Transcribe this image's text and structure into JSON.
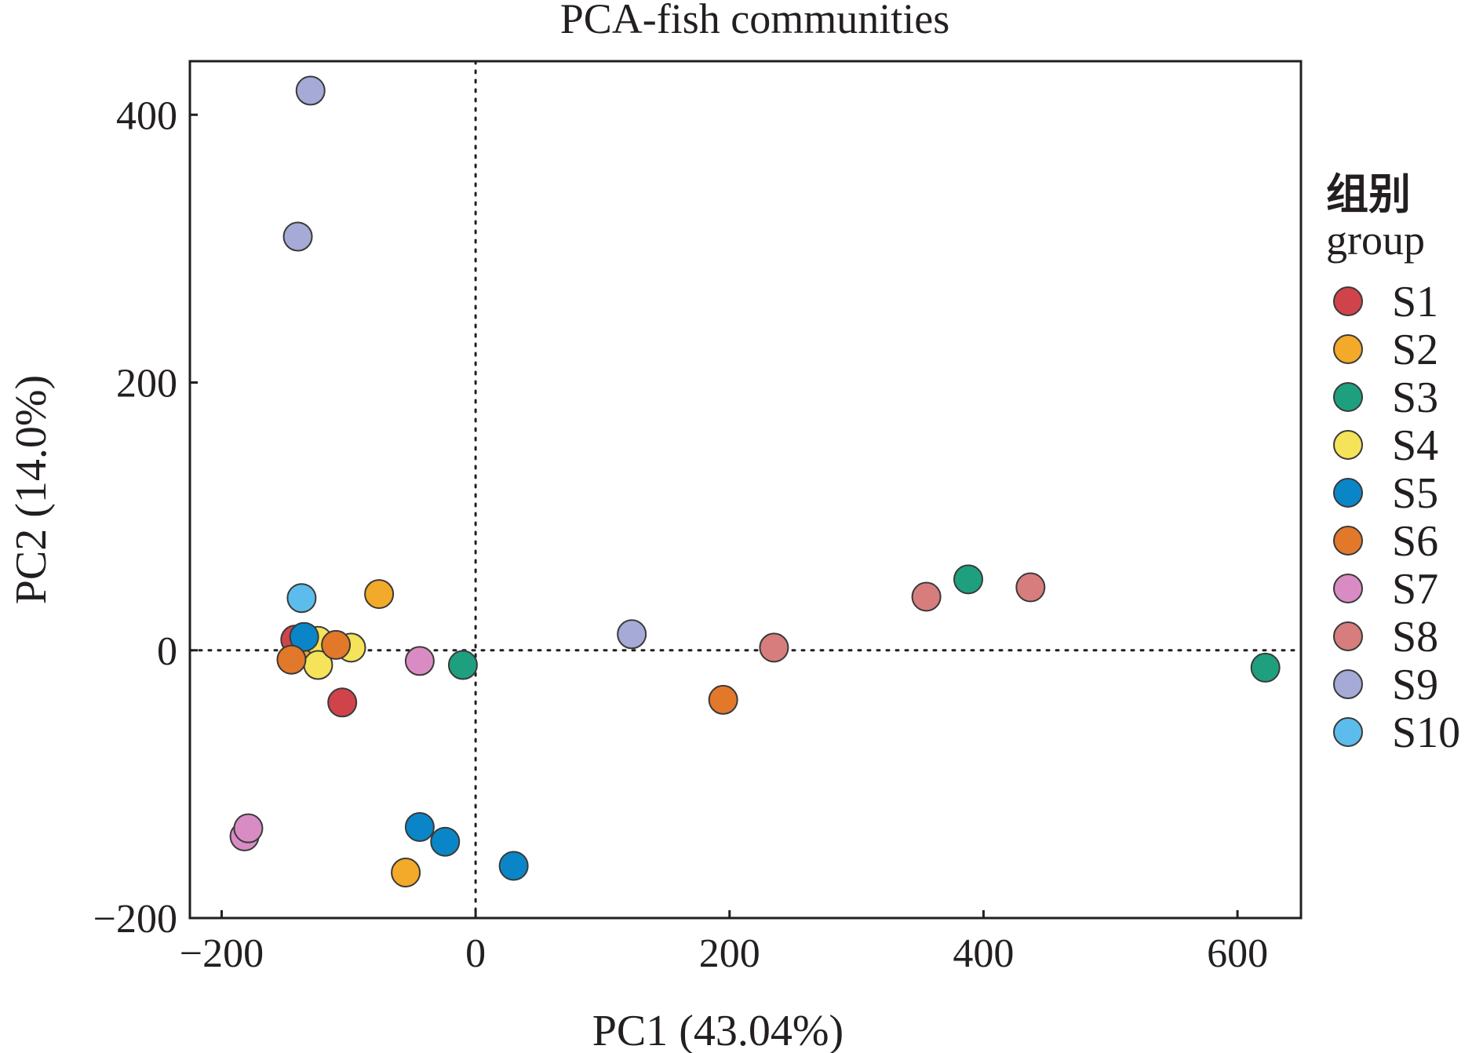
{
  "chart_data": {
    "type": "scatter",
    "title": "PCA-fish communities",
    "xlabel": "PC1 (43.04%)",
    "ylabel": "PC2 (14.0%)",
    "xlim": [
      -225,
      650
    ],
    "ylim": [
      -200,
      440
    ],
    "xticks": [
      -200,
      0,
      200,
      400,
      600
    ],
    "yticks": [
      -200,
      0,
      200,
      400
    ],
    "xtick_labels": [
      "−200",
      "0",
      "200",
      "400",
      "600"
    ],
    "ytick_labels": [
      "−200",
      "0",
      "200",
      "400"
    ],
    "reference_lines": {
      "x": 0,
      "y": 0,
      "style": "dotted"
    },
    "grid": false,
    "legend": {
      "title_cn": "组别",
      "title_en": "group",
      "placement": "right"
    },
    "series": [
      {
        "name": "S1",
        "color": "#d1434b",
        "points": [
          [
            -142,
            8
          ],
          [
            -105,
            -39
          ]
        ]
      },
      {
        "name": "S2",
        "color": "#f3a929",
        "points": [
          [
            -76,
            42
          ],
          [
            -55,
            -166
          ],
          [
            -128,
            2
          ]
        ]
      },
      {
        "name": "S3",
        "color": "#1ea07f",
        "points": [
          [
            -10,
            -11
          ],
          [
            388,
            53
          ],
          [
            622,
            -13
          ]
        ]
      },
      {
        "name": "S4",
        "color": "#f5e359",
        "points": [
          [
            -124,
            7
          ],
          [
            -98,
            2
          ],
          [
            -124,
            -11
          ]
        ]
      },
      {
        "name": "S5",
        "color": "#0a86c8",
        "points": [
          [
            -44,
            -132
          ],
          [
            -24,
            -143
          ],
          [
            30,
            -161
          ],
          [
            -135,
            10
          ]
        ]
      },
      {
        "name": "S6",
        "color": "#e2782a",
        "points": [
          [
            -145,
            -7
          ],
          [
            -110,
            4
          ],
          [
            195,
            -37
          ]
        ]
      },
      {
        "name": "S7",
        "color": "#d98cc3",
        "points": [
          [
            -44,
            -8
          ],
          [
            -182,
            -139
          ],
          [
            -179,
            -133
          ]
        ]
      },
      {
        "name": "S8",
        "color": "#d77d7d",
        "points": [
          [
            235,
            2
          ],
          [
            355,
            40
          ],
          [
            437,
            47
          ]
        ]
      },
      {
        "name": "S9",
        "color": "#a6aad6",
        "points": [
          [
            -130,
            418
          ],
          [
            -140,
            309
          ],
          [
            123,
            12
          ]
        ]
      },
      {
        "name": "S10",
        "color": "#5cbdec",
        "points": [
          [
            -137,
            39
          ]
        ]
      }
    ]
  }
}
